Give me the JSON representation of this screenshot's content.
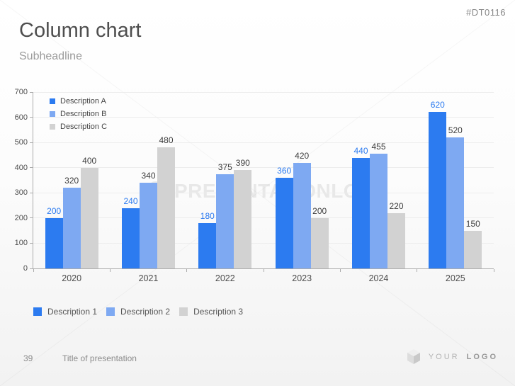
{
  "slide": {
    "tag": "#DT0116",
    "title": "Column chart",
    "subtitle": "Subheadline",
    "watermark": {
      "logo_letter": "p",
      "text": "PRESENTATIONLOAD"
    },
    "footer": {
      "page_number": "39",
      "presentation_title": "Title of presentation",
      "logo_text_your": "YOUR",
      "logo_text_logo": "LOGO"
    }
  },
  "chart_data": {
    "type": "bar",
    "title": "",
    "xlabel": "",
    "ylabel": "",
    "categories": [
      "2020",
      "2021",
      "2022",
      "2023",
      "2024",
      "2025"
    ],
    "series": [
      {
        "name": "Description A",
        "color": "#2c7bf0",
        "label_color": "#2c7bf0",
        "values": [
          200,
          240,
          180,
          360,
          440,
          620
        ]
      },
      {
        "name": "Description B",
        "color": "#7ea9f2",
        "label_color": "#3d3d3d",
        "values": [
          320,
          340,
          375,
          420,
          455,
          520
        ]
      },
      {
        "name": "Description C",
        "color": "#d2d2d2",
        "label_color": "#3d3d3d",
        "values": [
          400,
          480,
          390,
          200,
          220,
          150
        ]
      }
    ],
    "ylim": [
      0,
      700
    ],
    "yticks": [
      0,
      100,
      200,
      300,
      400,
      500,
      600,
      700
    ],
    "grid": true,
    "legend_position": "top-left-inside",
    "bottom_legend": [
      {
        "label": "Description 1",
        "color": "#2c7bf0"
      },
      {
        "label": "Description 2",
        "color": "#7ea9f2"
      },
      {
        "label": "Description 3",
        "color": "#d2d2d2"
      }
    ]
  }
}
